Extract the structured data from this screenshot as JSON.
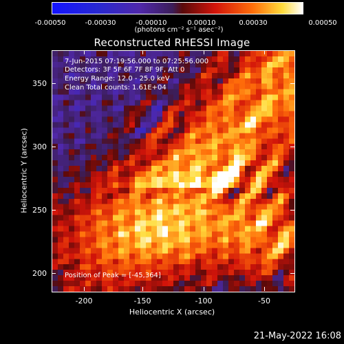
{
  "colorbar": {
    "ticks": [
      "-0.00050",
      "-0.00030",
      "-0.00010",
      "0.00010",
      "0.00030",
      "0.00050"
    ],
    "units": "(photons cm⁻² s⁻¹ asec⁻²)",
    "min": -0.0005,
    "max": 0.0005
  },
  "title": "Reconstructed RHESSI Image",
  "annotations": {
    "time_range": "7-Jun-2015 07:19:56.000 to 07:25:56.000",
    "detectors": "Detectors: 3F 5F 6F 7F 8F 9F, Att 0",
    "energy_range": "Energy Range: 12.0 - 25.0 keV",
    "clean_counts": "Clean     Total counts: 1.61E+04",
    "peak_position": "Position of Peak = [-45,364]"
  },
  "axes": {
    "xlabel": "Heliocentric X (arcsec)",
    "ylabel": "Heliocentric Y (arcsec)",
    "xticks": [
      "-200",
      "-150",
      "-100",
      "-50"
    ],
    "yticks": [
      "350",
      "300",
      "250",
      "200"
    ],
    "xlim": [
      -222,
      -29
    ],
    "ylim": [
      184,
      375
    ]
  },
  "timestamp": "21-May-2022 16:08"
}
